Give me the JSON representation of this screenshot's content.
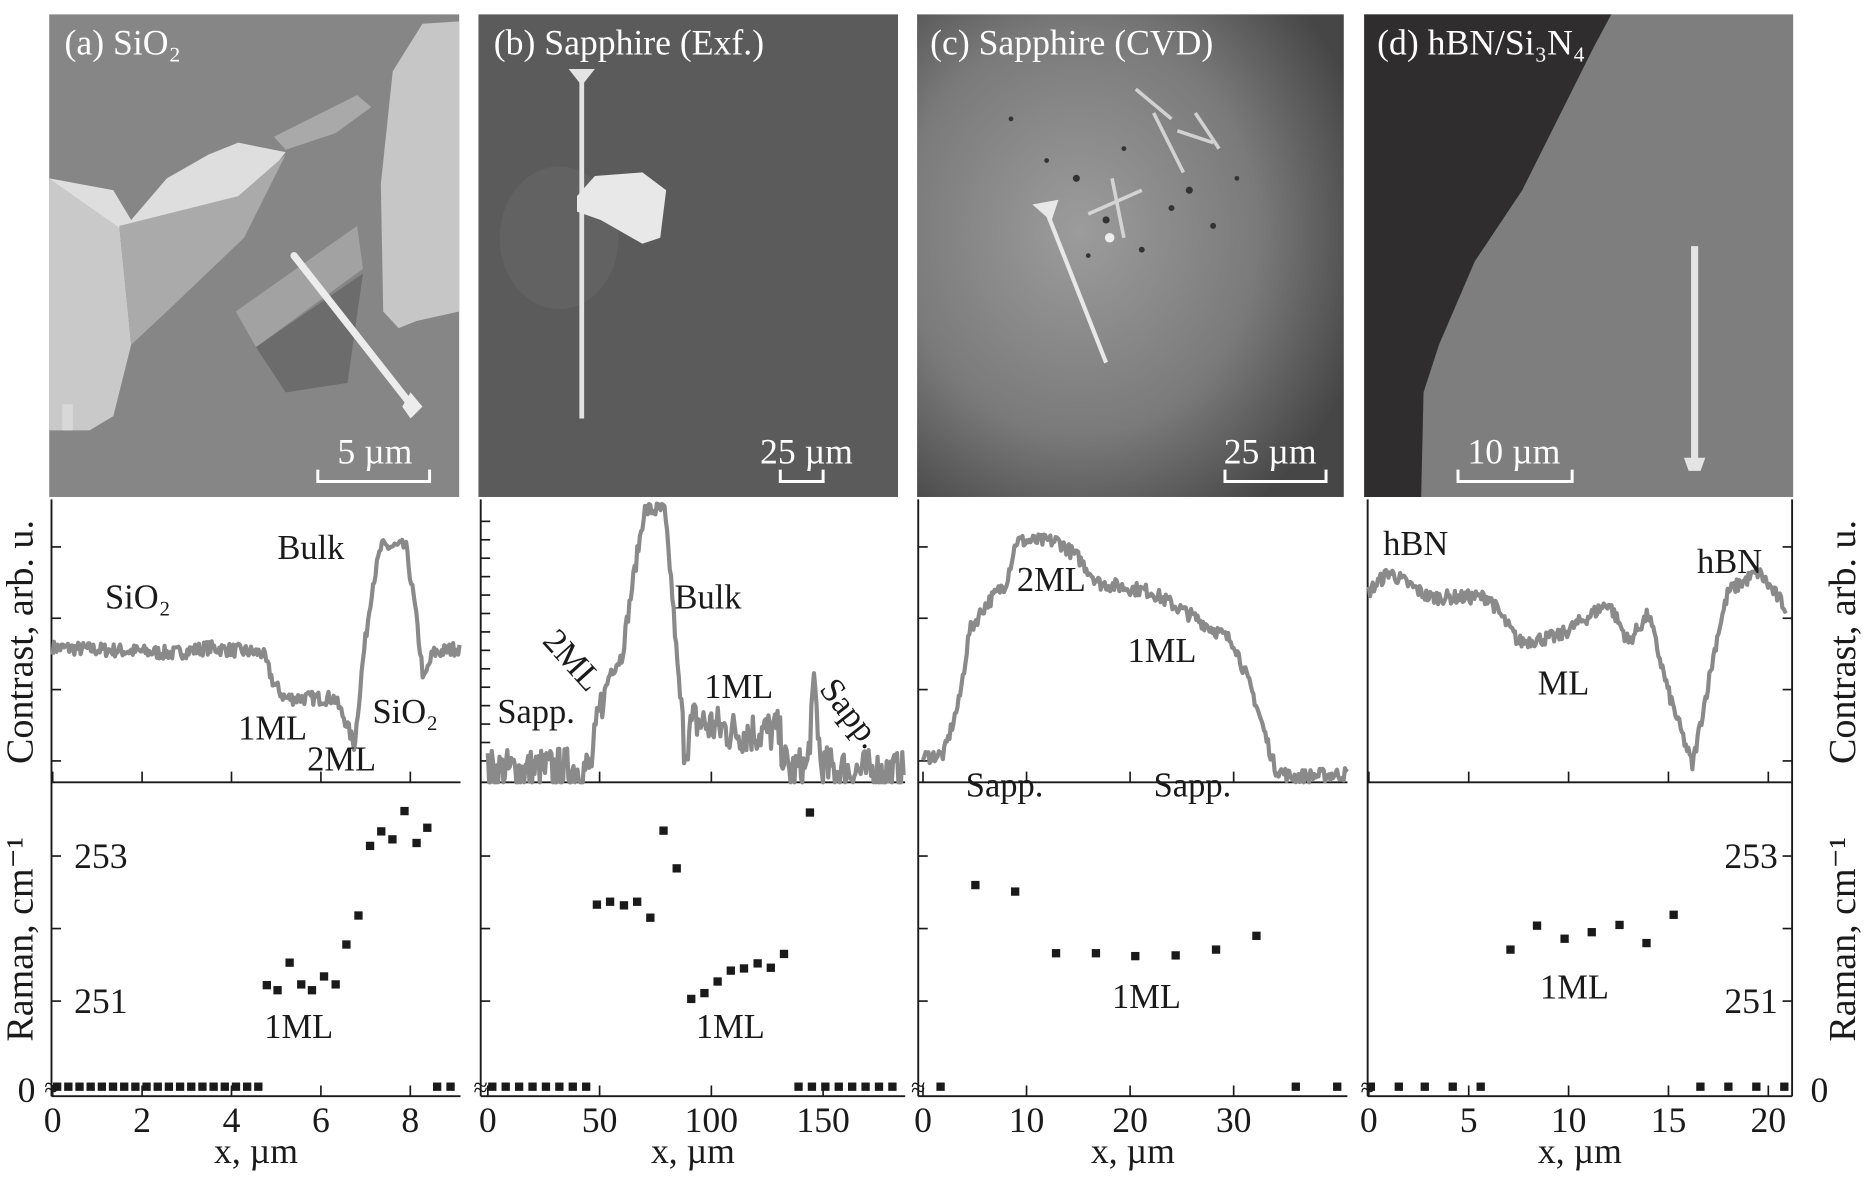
{
  "figure": {
    "ylabel_contrast": "Contrast, arb. u.",
    "ylabel_raman": "Raman, cm⁻¹",
    "xlabel": "x, µm",
    "raman_zero_label": "0",
    "break_symbol": "≈"
  },
  "colors": {
    "curve": "#8a8a8a",
    "points": "#1a1a1a",
    "axis": "#1a1a1a"
  },
  "chart_data": [
    {
      "type": "line+scatter",
      "title": "(a) SiO₂",
      "scale_bar": "5 µm",
      "xlabel": "x, µm",
      "xlim": [
        0,
        9.1
      ],
      "x_ticks": [
        0,
        2,
        4,
        6,
        8
      ],
      "raman_ylim": [
        250.6,
        254.1
      ],
      "raman_ytick_labels": [
        "253",
        "251"
      ],
      "contrast_annotations": [
        "SiO₂",
        "Bulk",
        "1ML",
        "2ML",
        "SiO₂"
      ],
      "raman_annotations": [
        "1ML"
      ],
      "contrast_curve": [
        [
          0,
          0.48
        ],
        [
          1.5,
          0.47
        ],
        [
          2.7,
          0.46
        ],
        [
          3.5,
          0.48
        ],
        [
          4.7,
          0.46
        ],
        [
          4.95,
          0.35
        ],
        [
          5.2,
          0.3
        ],
        [
          6.3,
          0.3
        ],
        [
          6.55,
          0.22
        ],
        [
          6.75,
          0.13
        ],
        [
          6.95,
          0.45
        ],
        [
          7.15,
          0.7
        ],
        [
          7.35,
          0.84
        ],
        [
          7.9,
          0.84
        ],
        [
          8.1,
          0.63
        ],
        [
          8.3,
          0.36
        ],
        [
          8.5,
          0.46
        ],
        [
          9.1,
          0.48
        ]
      ],
      "raman_points": [
        [
          4.79,
          251.22
        ],
        [
          5.03,
          251.15
        ],
        [
          5.3,
          251.53
        ],
        [
          5.56,
          251.23
        ],
        [
          5.8,
          251.15
        ],
        [
          6.07,
          251.34
        ],
        [
          6.33,
          251.23
        ],
        [
          6.57,
          251.78
        ],
        [
          6.84,
          252.18
        ],
        [
          7.1,
          253.14
        ],
        [
          7.35,
          253.34
        ],
        [
          7.6,
          253.23
        ],
        [
          7.87,
          253.62
        ],
        [
          8.14,
          253.18
        ],
        [
          8.38,
          253.39
        ]
      ],
      "raman_zero_points": [
        0.1,
        0.35,
        0.6,
        0.85,
        1.1,
        1.35,
        1.6,
        1.85,
        2.1,
        2.35,
        2.6,
        2.85,
        3.1,
        3.35,
        3.6,
        3.85,
        4.1,
        4.35,
        4.6,
        8.6,
        8.9
      ]
    },
    {
      "type": "line+scatter",
      "title": "(b) Sapphire (Exf.)",
      "scale_bar": "25 µm",
      "xlabel": "x, µm",
      "xlim": [
        0,
        187
      ],
      "x_ticks": [
        0,
        50,
        100,
        150
      ],
      "raman_ylim": [
        250.6,
        254.1
      ],
      "raman_ytick_labels": [],
      "contrast_annotations": [
        "Sapp.",
        "2ML",
        "Bulk",
        "1ML",
        "Sapp."
      ],
      "raman_annotations": [
        "1ML"
      ],
      "contrast_curve": [
        [
          0,
          0.04
        ],
        [
          46,
          0.05
        ],
        [
          50,
          0.25
        ],
        [
          55,
          0.4
        ],
        [
          60,
          0.45
        ],
        [
          65,
          0.72
        ],
        [
          70,
          0.97
        ],
        [
          79,
          0.97
        ],
        [
          82,
          0.72
        ],
        [
          85,
          0.4
        ],
        [
          88,
          0.12
        ],
        [
          92,
          0.22
        ],
        [
          110,
          0.18
        ],
        [
          130,
          0.18
        ],
        [
          134,
          0.04
        ],
        [
          143,
          0.05
        ],
        [
          146,
          0.38
        ],
        [
          149,
          0.05
        ],
        [
          186,
          0.03
        ]
      ],
      "raman_points": [
        [
          48.8,
          252.33
        ],
        [
          54.7,
          252.37
        ],
        [
          60.9,
          252.32
        ],
        [
          66.8,
          252.37
        ],
        [
          72.7,
          252.15
        ],
        [
          78.6,
          253.35
        ],
        [
          84.5,
          252.83
        ],
        [
          91.0,
          251.03
        ],
        [
          96.9,
          251.11
        ],
        [
          102.8,
          251.27
        ],
        [
          108.7,
          251.42
        ],
        [
          114.6,
          251.45
        ],
        [
          120.7,
          251.52
        ],
        [
          126.6,
          251.46
        ],
        [
          132.5,
          251.65
        ],
        [
          144.1,
          253.6
        ]
      ],
      "raman_zero_points": [
        2,
        8,
        14,
        20,
        26,
        32,
        38,
        44,
        139,
        145,
        151,
        157,
        163,
        169,
        175,
        181
      ]
    },
    {
      "type": "line+scatter",
      "title": "(c) Sapphire (CVD)",
      "scale_bar": "25 µm",
      "xlabel": "x, µm",
      "xlim": [
        0,
        41
      ],
      "x_ticks": [
        0,
        10,
        20,
        30
      ],
      "raman_ylim": [
        250.6,
        254.1
      ],
      "raman_ytick_labels": [],
      "contrast_annotations": [
        "2ML",
        "1ML",
        "Sapp.",
        "Sapp."
      ],
      "raman_annotations": [
        "1ML"
      ],
      "contrast_curve": [
        [
          0,
          0.09
        ],
        [
          2,
          0.1
        ],
        [
          3.5,
          0.29
        ],
        [
          4.5,
          0.54
        ],
        [
          6,
          0.63
        ],
        [
          8,
          0.71
        ],
        [
          9,
          0.86
        ],
        [
          13,
          0.86
        ],
        [
          15,
          0.8
        ],
        [
          17,
          0.71
        ],
        [
          22,
          0.68
        ],
        [
          27,
          0.57
        ],
        [
          30,
          0.5
        ],
        [
          32,
          0.3
        ],
        [
          34,
          0.05
        ],
        [
          35.5,
          0.02
        ],
        [
          41,
          0.03
        ]
      ],
      "raman_points": [
        [
          5.06,
          252.6
        ],
        [
          8.9,
          252.51
        ],
        [
          12.85,
          251.66
        ],
        [
          16.7,
          251.66
        ],
        [
          20.5,
          251.62
        ],
        [
          24.4,
          251.63
        ],
        [
          28.3,
          251.71
        ],
        [
          32.2,
          251.9
        ]
      ],
      "raman_zero_points": [
        1.7,
        36.0,
        40.0
      ]
    },
    {
      "type": "line+scatter",
      "title": "(d) hBN/Si₃N₄",
      "scale_bar": "10 µm",
      "xlabel": "x, µm",
      "xlim": [
        0,
        21.2
      ],
      "x_ticks": [
        0,
        5,
        10,
        15,
        20
      ],
      "raman_ylim": [
        250.6,
        254.1
      ],
      "raman_ytick_labels": [
        "253",
        "251"
      ],
      "contrast_annotations": [
        "hBN",
        "hBN",
        "ML"
      ],
      "raman_annotations": [
        "1ML"
      ],
      "contrast_curve": [
        [
          0,
          0.68
        ],
        [
          1,
          0.75
        ],
        [
          3,
          0.66
        ],
        [
          6,
          0.66
        ],
        [
          7.5,
          0.5
        ],
        [
          9.5,
          0.52
        ],
        [
          12,
          0.64
        ],
        [
          13,
          0.5
        ],
        [
          14,
          0.6
        ],
        [
          15,
          0.32
        ],
        [
          16.2,
          0.06
        ],
        [
          17.5,
          0.54
        ],
        [
          18,
          0.68
        ],
        [
          19.5,
          0.75
        ],
        [
          20.9,
          0.62
        ]
      ],
      "raman_points": [
        [
          7.09,
          251.71
        ],
        [
          8.42,
          252.04
        ],
        [
          9.8,
          251.86
        ],
        [
          11.16,
          251.95
        ],
        [
          12.55,
          252.05
        ],
        [
          13.9,
          251.8
        ],
        [
          15.26,
          252.19
        ]
      ],
      "raman_zero_points": [
        0.1,
        1.5,
        2.8,
        4.2,
        5.6,
        16.6,
        18.0,
        19.4,
        20.8
      ]
    }
  ]
}
